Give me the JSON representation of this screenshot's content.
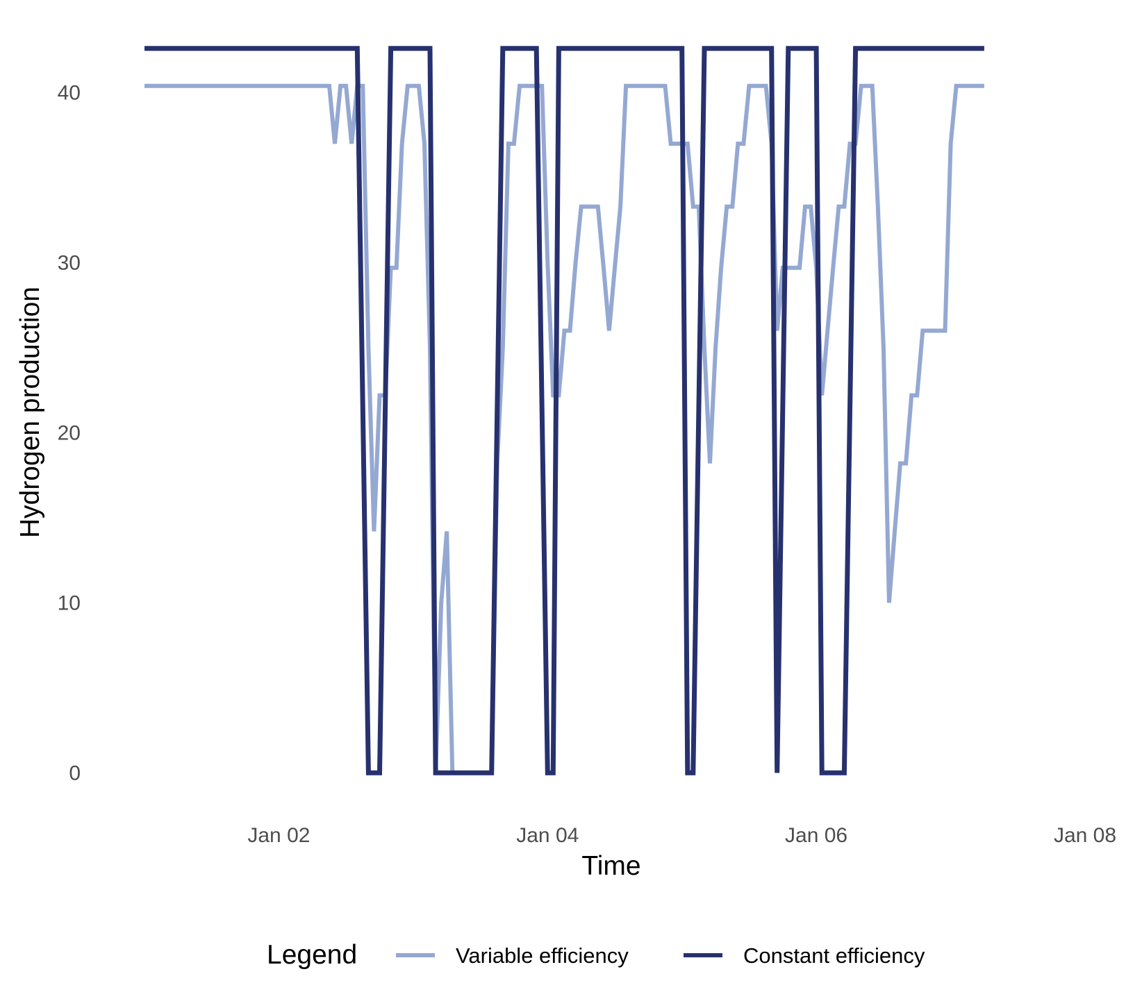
{
  "chart_data": {
    "type": "line",
    "xlabel": "Time",
    "ylabel": "Hydrogen production",
    "xlim": [
      "2024-01-01 00:00",
      "2024-01-08 00:00"
    ],
    "ylim": [
      -1.5,
      43
    ],
    "x_ticks": [
      {
        "date": "2024-01-02 00:00",
        "label": "Jan 02"
      },
      {
        "date": "2024-01-04 00:00",
        "label": "Jan 04"
      },
      {
        "date": "2024-01-06 00:00",
        "label": "Jan 06"
      },
      {
        "date": "2024-01-08 00:00",
        "label": "Jan 08"
      }
    ],
    "y_ticks": [
      0,
      10,
      20,
      30,
      40
    ],
    "grid": false,
    "legend": {
      "title": "Legend",
      "position": "bottom",
      "entries": [
        "Variable efficiency",
        "Constant efficiency"
      ]
    },
    "series": [
      {
        "name": "Variable efficiency",
        "color": "#94a8d2",
        "points": [
          [
            "2024-01-01 00:00",
            40.4
          ],
          [
            "2024-01-02 09:00",
            40.4
          ],
          [
            "2024-01-02 10:00",
            37.0
          ],
          [
            "2024-01-02 11:00",
            40.4
          ],
          [
            "2024-01-02 12:00",
            40.4
          ],
          [
            "2024-01-02 13:00",
            37.0
          ],
          [
            "2024-01-02 14:00",
            40.4
          ],
          [
            "2024-01-02 15:00",
            40.4
          ],
          [
            "2024-01-02 16:00",
            25.0
          ],
          [
            "2024-01-02 17:00",
            14.2
          ],
          [
            "2024-01-02 18:00",
            22.2
          ],
          [
            "2024-01-02 19:00",
            22.2
          ],
          [
            "2024-01-02 20:00",
            29.7
          ],
          [
            "2024-01-02 21:00",
            29.7
          ],
          [
            "2024-01-02 22:00",
            37.0
          ],
          [
            "2024-01-02 23:00",
            40.4
          ],
          [
            "2024-01-03 01:00",
            40.4
          ],
          [
            "2024-01-03 02:00",
            37.0
          ],
          [
            "2024-01-03 03:00",
            25.0
          ],
          [
            "2024-01-03 04:00",
            0
          ],
          [
            "2024-01-03 05:00",
            10.0
          ],
          [
            "2024-01-03 06:00",
            14.2
          ],
          [
            "2024-01-03 07:00",
            0
          ],
          [
            "2024-01-03 14:00",
            0
          ],
          [
            "2024-01-03 15:00",
            18.2
          ],
          [
            "2024-01-03 16:00",
            25.0
          ],
          [
            "2024-01-03 17:00",
            37.0
          ],
          [
            "2024-01-03 18:00",
            37.0
          ],
          [
            "2024-01-03 19:00",
            40.4
          ],
          [
            "2024-01-03 23:00",
            40.4
          ],
          [
            "2024-01-04 00:00",
            30.0
          ],
          [
            "2024-01-04 01:00",
            22.2
          ],
          [
            "2024-01-04 02:00",
            22.2
          ],
          [
            "2024-01-04 03:00",
            26.0
          ],
          [
            "2024-01-04 04:00",
            26.0
          ],
          [
            "2024-01-04 05:00",
            30.0
          ],
          [
            "2024-01-04 06:00",
            33.3
          ],
          [
            "2024-01-04 09:00",
            33.3
          ],
          [
            "2024-01-04 10:00",
            29.7
          ],
          [
            "2024-01-04 11:00",
            26.0
          ],
          [
            "2024-01-04 12:00",
            29.7
          ],
          [
            "2024-01-04 13:00",
            33.3
          ],
          [
            "2024-01-04 14:00",
            40.4
          ],
          [
            "2024-01-04 21:00",
            40.4
          ],
          [
            "2024-01-04 22:00",
            37.0
          ],
          [
            "2024-01-05 01:00",
            37.0
          ],
          [
            "2024-01-05 02:00",
            33.3
          ],
          [
            "2024-01-05 03:00",
            33.3
          ],
          [
            "2024-01-05 04:00",
            25.0
          ],
          [
            "2024-01-05 05:00",
            18.2
          ],
          [
            "2024-01-05 06:00",
            25.0
          ],
          [
            "2024-01-05 07:00",
            29.7
          ],
          [
            "2024-01-05 08:00",
            33.3
          ],
          [
            "2024-01-05 09:00",
            33.3
          ],
          [
            "2024-01-05 10:00",
            37.0
          ],
          [
            "2024-01-05 11:00",
            37.0
          ],
          [
            "2024-01-05 12:00",
            40.4
          ],
          [
            "2024-01-05 15:00",
            40.4
          ],
          [
            "2024-01-05 16:00",
            37.0
          ],
          [
            "2024-01-05 17:00",
            26.0
          ],
          [
            "2024-01-05 18:00",
            29.7
          ],
          [
            "2024-01-05 20:00",
            29.7
          ],
          [
            "2024-01-05 21:00",
            29.7
          ],
          [
            "2024-01-05 22:00",
            33.3
          ],
          [
            "2024-01-05 23:00",
            33.3
          ],
          [
            "2024-01-06 00:00",
            29.7
          ],
          [
            "2024-01-06 01:00",
            22.2
          ],
          [
            "2024-01-06 02:00",
            26.0
          ],
          [
            "2024-01-06 03:00",
            29.7
          ],
          [
            "2024-01-06 04:00",
            33.3
          ],
          [
            "2024-01-06 05:00",
            33.3
          ],
          [
            "2024-01-06 06:00",
            37.0
          ],
          [
            "2024-01-06 07:00",
            37.0
          ],
          [
            "2024-01-06 08:00",
            40.4
          ],
          [
            "2024-01-06 10:00",
            40.4
          ],
          [
            "2024-01-06 11:00",
            33.3
          ],
          [
            "2024-01-06 12:00",
            25.0
          ],
          [
            "2024-01-06 13:00",
            10.0
          ],
          [
            "2024-01-06 14:00",
            14.2
          ],
          [
            "2024-01-06 15:00",
            18.2
          ],
          [
            "2024-01-06 16:00",
            18.2
          ],
          [
            "2024-01-06 17:00",
            22.2
          ],
          [
            "2024-01-06 18:00",
            22.2
          ],
          [
            "2024-01-06 19:00",
            26.0
          ],
          [
            "2024-01-06 23:00",
            26.0
          ],
          [
            "2024-01-07 00:00",
            37.0
          ],
          [
            "2024-01-07 01:00",
            40.4
          ],
          [
            "2024-01-07 06:00",
            40.4
          ]
        ]
      },
      {
        "name": "Constant efficiency",
        "color": "#27316e",
        "points": [
          [
            "2024-01-01 00:00",
            42.6
          ],
          [
            "2024-01-02 14:00",
            42.6
          ],
          [
            "2024-01-02 16:00",
            0
          ],
          [
            "2024-01-02 18:00",
            0
          ],
          [
            "2024-01-02 20:00",
            42.6
          ],
          [
            "2024-01-03 03:00",
            42.6
          ],
          [
            "2024-01-03 04:00",
            0
          ],
          [
            "2024-01-03 14:00",
            0
          ],
          [
            "2024-01-03 16:00",
            42.6
          ],
          [
            "2024-01-03 22:00",
            42.6
          ],
          [
            "2024-01-04 00:00",
            0
          ],
          [
            "2024-01-04 01:00",
            0
          ],
          [
            "2024-01-04 02:00",
            42.6
          ],
          [
            "2024-01-04 19:00",
            42.6
          ],
          [
            "2024-01-05 00:00",
            42.6
          ],
          [
            "2024-01-05 01:00",
            0
          ],
          [
            "2024-01-05 02:00",
            0
          ],
          [
            "2024-01-05 04:00",
            42.6
          ],
          [
            "2024-01-05 16:00",
            42.6
          ],
          [
            "2024-01-05 17:00",
            0
          ],
          [
            "2024-01-05 19:00",
            42.6
          ],
          [
            "2024-01-06 00:00",
            42.6
          ],
          [
            "2024-01-06 01:00",
            0
          ],
          [
            "2024-01-06 05:00",
            0
          ],
          [
            "2024-01-06 07:00",
            42.6
          ],
          [
            "2024-01-07 06:00",
            42.6
          ]
        ]
      }
    ]
  }
}
